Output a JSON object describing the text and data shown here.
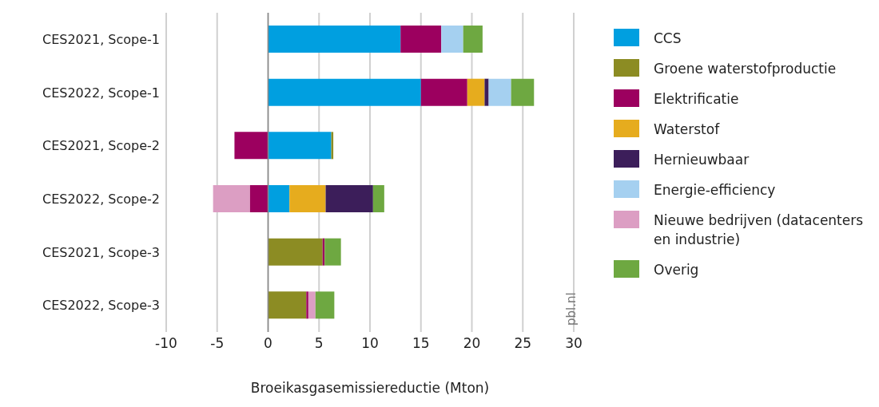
{
  "chart_data": {
    "type": "bar",
    "orientation": "horizontal",
    "stacked": true,
    "xlabel": "Broeikasgasemissiereductie (Mton)",
    "categories": [
      "CES2021, Scope-1",
      "CES2022, Scope-1",
      "CES2021, Scope-2",
      "CES2022, Scope-2",
      "CES2021, Scope-3",
      "CES2022, Scope-3"
    ],
    "series": [
      {
        "name": "CCS",
        "color": "#009fe0",
        "values": [
          13.0,
          15.0,
          6.2,
          2.1,
          null,
          null
        ]
      },
      {
        "name": "Groene waterstofproductie",
        "color": "#8c8c23",
        "values": [
          null,
          null,
          0.2,
          null,
          5.35,
          3.75
        ]
      },
      {
        "name": "Elektrificatie",
        "color": "#9c005f",
        "values": [
          4.0,
          4.55,
          -3.3,
          -1.8,
          0.2,
          0.2
        ]
      },
      {
        "name": "Waterstof",
        "color": "#e6ac1e",
        "values": [
          null,
          1.7,
          null,
          3.55,
          null,
          null
        ]
      },
      {
        "name": "Hernieuwbaar",
        "color": "#3c1e5a",
        "values": [
          null,
          0.4,
          null,
          4.65,
          null,
          null
        ]
      },
      {
        "name": "Energie-efficiency",
        "color": "#a5d0f0",
        "values": [
          2.15,
          2.2,
          null,
          null,
          null,
          null
        ]
      },
      {
        "name": "Nieuwe bedrijven (datacenters en industrie)",
        "color": "#dc9ec3",
        "values": [
          null,
          null,
          null,
          -3.6,
          null,
          0.7
        ]
      },
      {
        "name": "Overig",
        "color": "#6ea841",
        "values": [
          1.9,
          2.25,
          null,
          1.1,
          1.6,
          1.85
        ]
      }
    ],
    "xlim": [
      -10,
      30
    ],
    "xticks": [
      -10,
      -5,
      0,
      5,
      10,
      15,
      20,
      25,
      30
    ],
    "grid": "x",
    "legend": "right",
    "ref_lines": [
      {
        "axis": "x",
        "value": 0,
        "color": "#888888"
      }
    ],
    "annotations": [
      "pbl.nl"
    ]
  }
}
